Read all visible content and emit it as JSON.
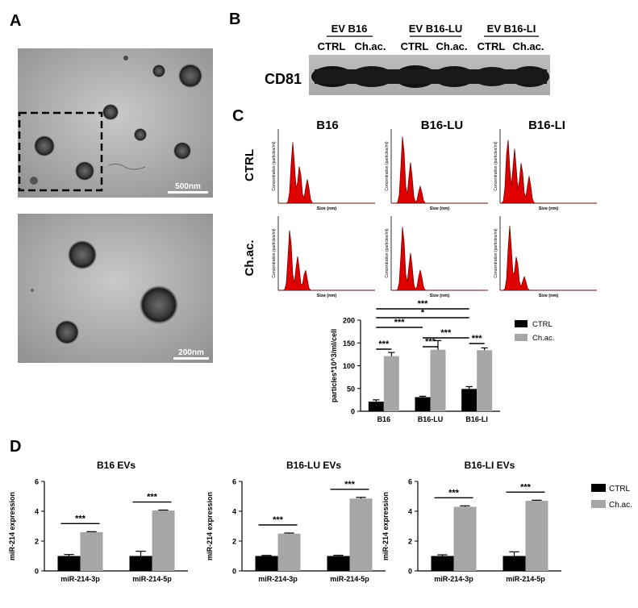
{
  "panels": {
    "A": {
      "letter": "A",
      "top_scale": "500nm",
      "bottom_scale": "200nm"
    },
    "B": {
      "letter": "B",
      "groups": [
        "EV B16",
        "EV B16-LU",
        "EV B16-LI"
      ],
      "lane_labels": [
        "CTRL",
        "Ch.ac.",
        "CTRL",
        "Ch.ac.",
        "CTRL",
        "Ch.ac."
      ],
      "protein": "CD81"
    },
    "C": {
      "letter": "C",
      "columns": [
        "B16",
        "B16-LU",
        "B16-LI"
      ],
      "rows": [
        "CTRL",
        "Ch.ac."
      ],
      "nta_ylabel": "Concentration (particles/ml)",
      "nta_xlabel": "Size (nm)"
    },
    "D": {
      "letter": "D"
    }
  },
  "significance": {
    "C_brackets": [
      "***",
      "*",
      "***",
      "***",
      "***",
      "***",
      "***"
    ],
    "D_brackets": [
      "***",
      "***",
      "***",
      "***",
      "***",
      "***"
    ]
  },
  "colors": {
    "ctrl": "#000000",
    "chac": "#a6a6a6",
    "nta_fill": "#e00000",
    "nta_line": "#7a0000",
    "em_bg": "#b9b9b9"
  },
  "chart_data": [
    {
      "id": "particles",
      "type": "bar",
      "categories": [
        "B16",
        "B16-LU",
        "B16-LI"
      ],
      "series": [
        {
          "name": "CTRL",
          "values": [
            21,
            31,
            49
          ],
          "errors": [
            4,
            2,
            5
          ]
        },
        {
          "name": "Ch.ac.",
          "values": [
            121,
            135,
            134
          ],
          "errors": [
            8,
            20,
            5
          ]
        }
      ],
      "ylabel": "particles*10^3/ml/cell",
      "xlabel": "",
      "ylim": [
        0,
        200
      ],
      "yticks": [
        "0",
        "50",
        "100",
        "150",
        "200"
      ],
      "legend": "right",
      "grid": false
    },
    {
      "id": "b16",
      "type": "bar",
      "title": "B16 EVs",
      "categories": [
        "miR-214-3p",
        "miR-214-5p"
      ],
      "series": [
        {
          "name": "CTRL",
          "values": [
            1.0,
            1.0
          ],
          "errors": [
            0.1,
            0.32
          ]
        },
        {
          "name": "Ch.ac.",
          "values": [
            2.6,
            4.05
          ],
          "errors": [
            0.03,
            0.03
          ]
        }
      ],
      "ylabel": "miR-214 expression",
      "ylim": [
        0,
        6
      ],
      "yticks": [
        "0",
        "2",
        "4",
        "6"
      ]
    },
    {
      "id": "b16lu",
      "type": "bar",
      "title": "B16-LU EVs",
      "categories": [
        "miR-214-3p",
        "miR-214-5p"
      ],
      "series": [
        {
          "name": "CTRL",
          "values": [
            1.0,
            1.0
          ],
          "errors": [
            0.04,
            0.05
          ]
        },
        {
          "name": "Ch.ac.",
          "values": [
            2.5,
            4.85
          ],
          "errors": [
            0.04,
            0.08
          ]
        }
      ],
      "ylabel": "miR-214 expression",
      "ylim": [
        0,
        6
      ],
      "yticks": [
        "0",
        "2",
        "4",
        "6"
      ]
    },
    {
      "id": "b16li",
      "type": "bar",
      "title": "B16-LI EVs",
      "categories": [
        "miR-214-3p",
        "miR-214-5p"
      ],
      "series": [
        {
          "name": "CTRL",
          "values": [
            1.0,
            1.0
          ],
          "errors": [
            0.08,
            0.28
          ]
        },
        {
          "name": "Ch.ac.",
          "values": [
            4.3,
            4.7
          ],
          "errors": [
            0.06,
            0.04
          ]
        }
      ],
      "ylabel": "miR-214 expression",
      "ylim": [
        0,
        6
      ],
      "yticks": [
        "0",
        "2",
        "4",
        "6"
      ],
      "legend": "right"
    }
  ]
}
